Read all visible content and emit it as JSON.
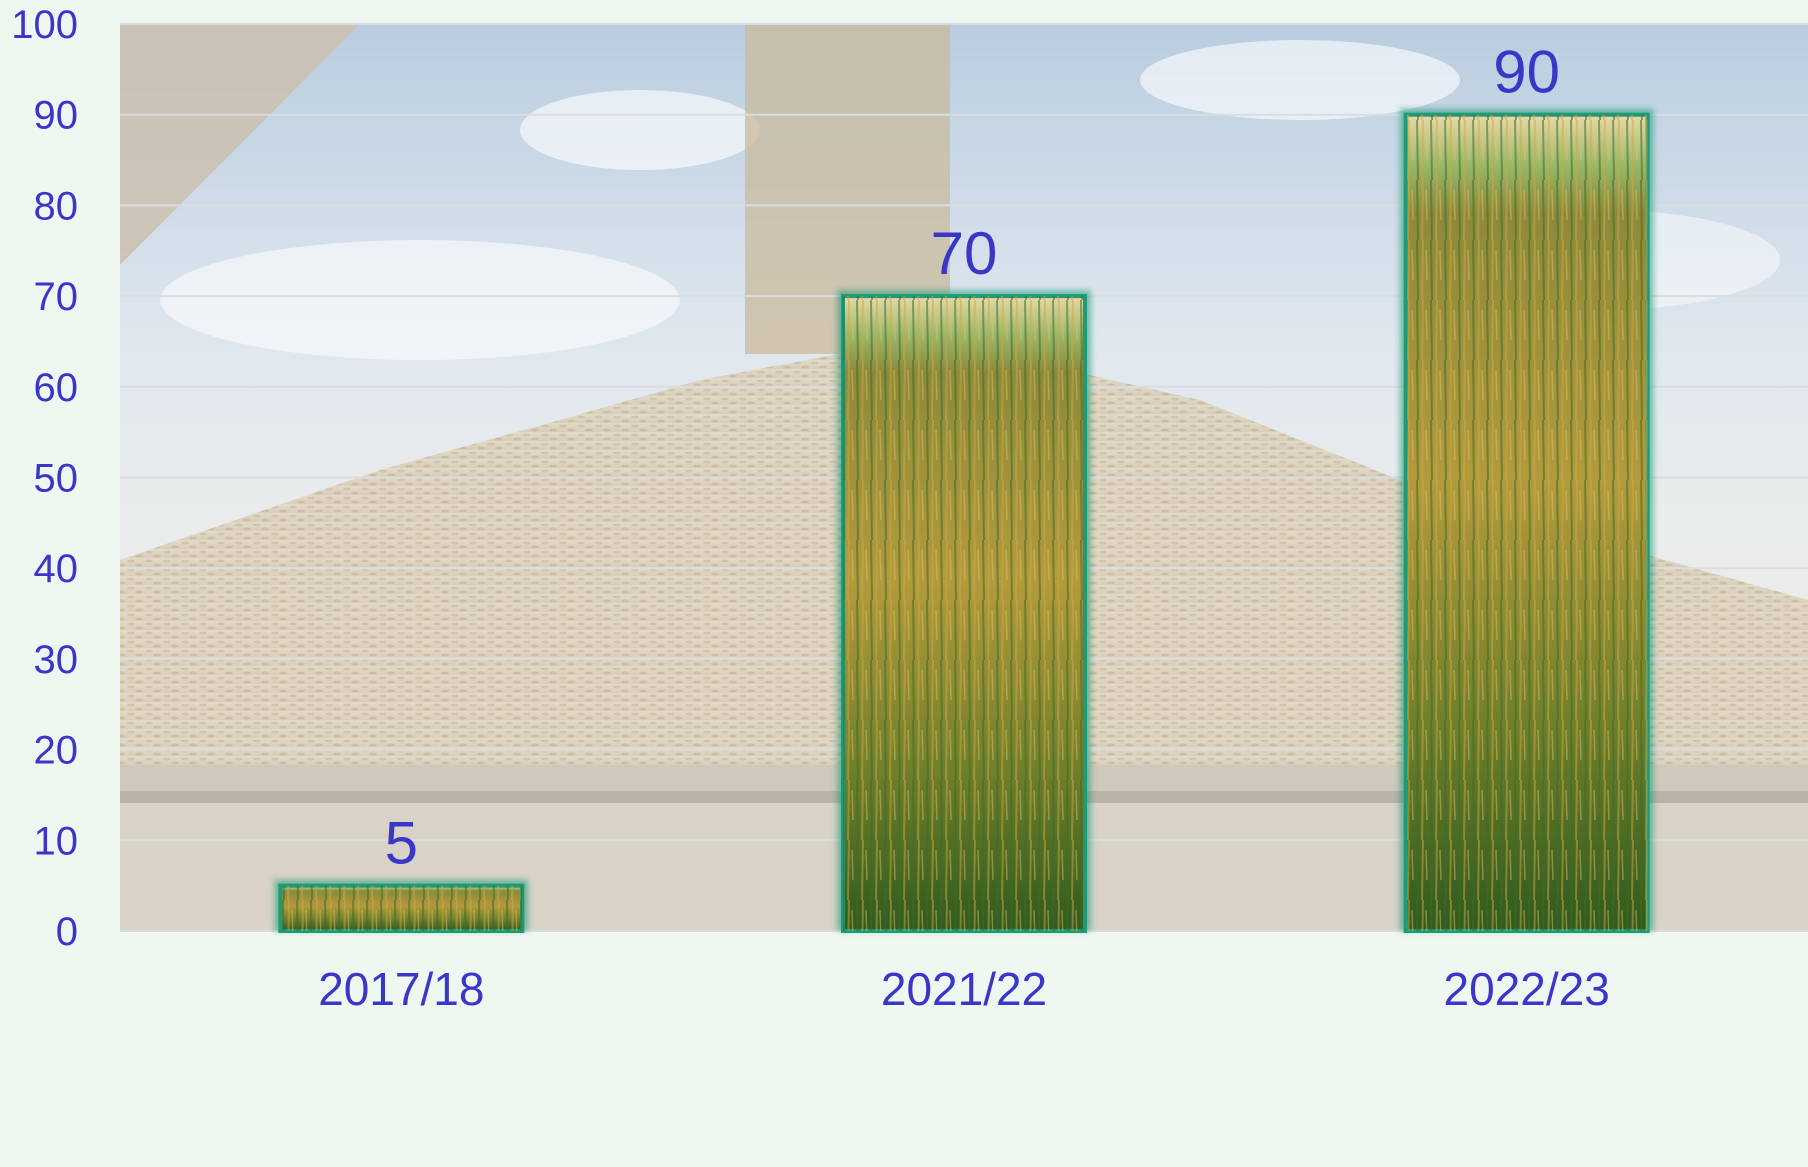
{
  "chart_data": {
    "type": "bar",
    "categories": [
      "2017/18",
      "2021/22",
      "2022/23"
    ],
    "values": [
      5,
      70,
      90
    ],
    "data_labels": [
      "5",
      "70",
      "90"
    ],
    "title": "",
    "xlabel": "",
    "ylabel": "",
    "ylim": [
      0,
      100
    ],
    "yticks": [
      "0",
      "10",
      "20",
      "30",
      "40",
      "50",
      "60",
      "70",
      "80",
      "90",
      "100"
    ],
    "grid": true,
    "legend": "none"
  },
  "colors": {
    "text": "#3a36c8",
    "bar_border": "#1e9a76",
    "background": "#eef7f0",
    "grid": "#d9dde0"
  },
  "plot_background": "grain pile and sky photo",
  "bar_fill": "rice field photo"
}
